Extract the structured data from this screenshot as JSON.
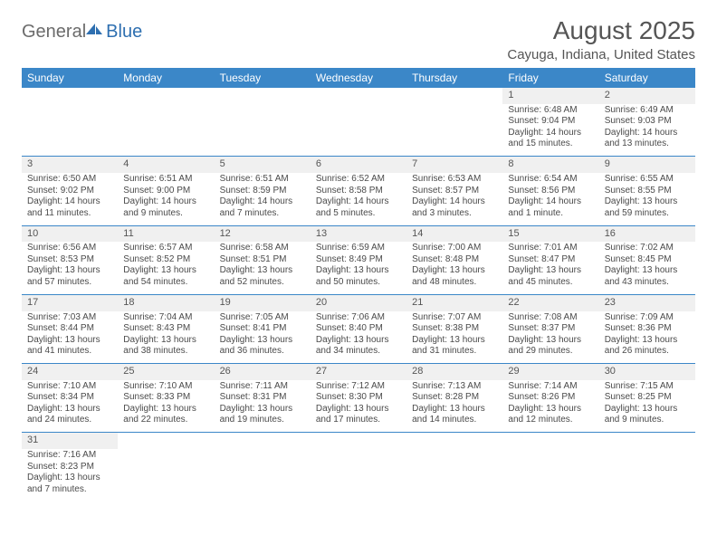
{
  "logo": {
    "word1": "General",
    "word2": "Blue"
  },
  "title": "August 2025",
  "location": "Cayuga, Indiana, United States",
  "columns": [
    "Sunday",
    "Monday",
    "Tuesday",
    "Wednesday",
    "Thursday",
    "Friday",
    "Saturday"
  ],
  "colors": {
    "header_bg": "#3b87c8",
    "header_text": "#ffffff",
    "daynum_bg": "#f0f0f0",
    "divider": "#3b87c8",
    "text": "#4a4a4a",
    "logo_gray": "#6b6b6b",
    "logo_blue": "#2e6fb0"
  },
  "typography": {
    "title_fontsize": 28,
    "location_fontsize": 15,
    "header_fontsize": 12,
    "daynum_fontsize": 11,
    "body_fontsize": 10
  },
  "weeks": [
    [
      null,
      null,
      null,
      null,
      null,
      {
        "n": "1",
        "sr": "Sunrise: 6:48 AM",
        "ss": "Sunset: 9:04 PM",
        "dl": "Daylight: 14 hours and 15 minutes."
      },
      {
        "n": "2",
        "sr": "Sunrise: 6:49 AM",
        "ss": "Sunset: 9:03 PM",
        "dl": "Daylight: 14 hours and 13 minutes."
      }
    ],
    [
      {
        "n": "3",
        "sr": "Sunrise: 6:50 AM",
        "ss": "Sunset: 9:02 PM",
        "dl": "Daylight: 14 hours and 11 minutes."
      },
      {
        "n": "4",
        "sr": "Sunrise: 6:51 AM",
        "ss": "Sunset: 9:00 PM",
        "dl": "Daylight: 14 hours and 9 minutes."
      },
      {
        "n": "5",
        "sr": "Sunrise: 6:51 AM",
        "ss": "Sunset: 8:59 PM",
        "dl": "Daylight: 14 hours and 7 minutes."
      },
      {
        "n": "6",
        "sr": "Sunrise: 6:52 AM",
        "ss": "Sunset: 8:58 PM",
        "dl": "Daylight: 14 hours and 5 minutes."
      },
      {
        "n": "7",
        "sr": "Sunrise: 6:53 AM",
        "ss": "Sunset: 8:57 PM",
        "dl": "Daylight: 14 hours and 3 minutes."
      },
      {
        "n": "8",
        "sr": "Sunrise: 6:54 AM",
        "ss": "Sunset: 8:56 PM",
        "dl": "Daylight: 14 hours and 1 minute."
      },
      {
        "n": "9",
        "sr": "Sunrise: 6:55 AM",
        "ss": "Sunset: 8:55 PM",
        "dl": "Daylight: 13 hours and 59 minutes."
      }
    ],
    [
      {
        "n": "10",
        "sr": "Sunrise: 6:56 AM",
        "ss": "Sunset: 8:53 PM",
        "dl": "Daylight: 13 hours and 57 minutes."
      },
      {
        "n": "11",
        "sr": "Sunrise: 6:57 AM",
        "ss": "Sunset: 8:52 PM",
        "dl": "Daylight: 13 hours and 54 minutes."
      },
      {
        "n": "12",
        "sr": "Sunrise: 6:58 AM",
        "ss": "Sunset: 8:51 PM",
        "dl": "Daylight: 13 hours and 52 minutes."
      },
      {
        "n": "13",
        "sr": "Sunrise: 6:59 AM",
        "ss": "Sunset: 8:49 PM",
        "dl": "Daylight: 13 hours and 50 minutes."
      },
      {
        "n": "14",
        "sr": "Sunrise: 7:00 AM",
        "ss": "Sunset: 8:48 PM",
        "dl": "Daylight: 13 hours and 48 minutes."
      },
      {
        "n": "15",
        "sr": "Sunrise: 7:01 AM",
        "ss": "Sunset: 8:47 PM",
        "dl": "Daylight: 13 hours and 45 minutes."
      },
      {
        "n": "16",
        "sr": "Sunrise: 7:02 AM",
        "ss": "Sunset: 8:45 PM",
        "dl": "Daylight: 13 hours and 43 minutes."
      }
    ],
    [
      {
        "n": "17",
        "sr": "Sunrise: 7:03 AM",
        "ss": "Sunset: 8:44 PM",
        "dl": "Daylight: 13 hours and 41 minutes."
      },
      {
        "n": "18",
        "sr": "Sunrise: 7:04 AM",
        "ss": "Sunset: 8:43 PM",
        "dl": "Daylight: 13 hours and 38 minutes."
      },
      {
        "n": "19",
        "sr": "Sunrise: 7:05 AM",
        "ss": "Sunset: 8:41 PM",
        "dl": "Daylight: 13 hours and 36 minutes."
      },
      {
        "n": "20",
        "sr": "Sunrise: 7:06 AM",
        "ss": "Sunset: 8:40 PM",
        "dl": "Daylight: 13 hours and 34 minutes."
      },
      {
        "n": "21",
        "sr": "Sunrise: 7:07 AM",
        "ss": "Sunset: 8:38 PM",
        "dl": "Daylight: 13 hours and 31 minutes."
      },
      {
        "n": "22",
        "sr": "Sunrise: 7:08 AM",
        "ss": "Sunset: 8:37 PM",
        "dl": "Daylight: 13 hours and 29 minutes."
      },
      {
        "n": "23",
        "sr": "Sunrise: 7:09 AM",
        "ss": "Sunset: 8:36 PM",
        "dl": "Daylight: 13 hours and 26 minutes."
      }
    ],
    [
      {
        "n": "24",
        "sr": "Sunrise: 7:10 AM",
        "ss": "Sunset: 8:34 PM",
        "dl": "Daylight: 13 hours and 24 minutes."
      },
      {
        "n": "25",
        "sr": "Sunrise: 7:10 AM",
        "ss": "Sunset: 8:33 PM",
        "dl": "Daylight: 13 hours and 22 minutes."
      },
      {
        "n": "26",
        "sr": "Sunrise: 7:11 AM",
        "ss": "Sunset: 8:31 PM",
        "dl": "Daylight: 13 hours and 19 minutes."
      },
      {
        "n": "27",
        "sr": "Sunrise: 7:12 AM",
        "ss": "Sunset: 8:30 PM",
        "dl": "Daylight: 13 hours and 17 minutes."
      },
      {
        "n": "28",
        "sr": "Sunrise: 7:13 AM",
        "ss": "Sunset: 8:28 PM",
        "dl": "Daylight: 13 hours and 14 minutes."
      },
      {
        "n": "29",
        "sr": "Sunrise: 7:14 AM",
        "ss": "Sunset: 8:26 PM",
        "dl": "Daylight: 13 hours and 12 minutes."
      },
      {
        "n": "30",
        "sr": "Sunrise: 7:15 AM",
        "ss": "Sunset: 8:25 PM",
        "dl": "Daylight: 13 hours and 9 minutes."
      }
    ],
    [
      {
        "n": "31",
        "sr": "Sunrise: 7:16 AM",
        "ss": "Sunset: 8:23 PM",
        "dl": "Daylight: 13 hours and 7 minutes."
      },
      null,
      null,
      null,
      null,
      null,
      null
    ]
  ]
}
